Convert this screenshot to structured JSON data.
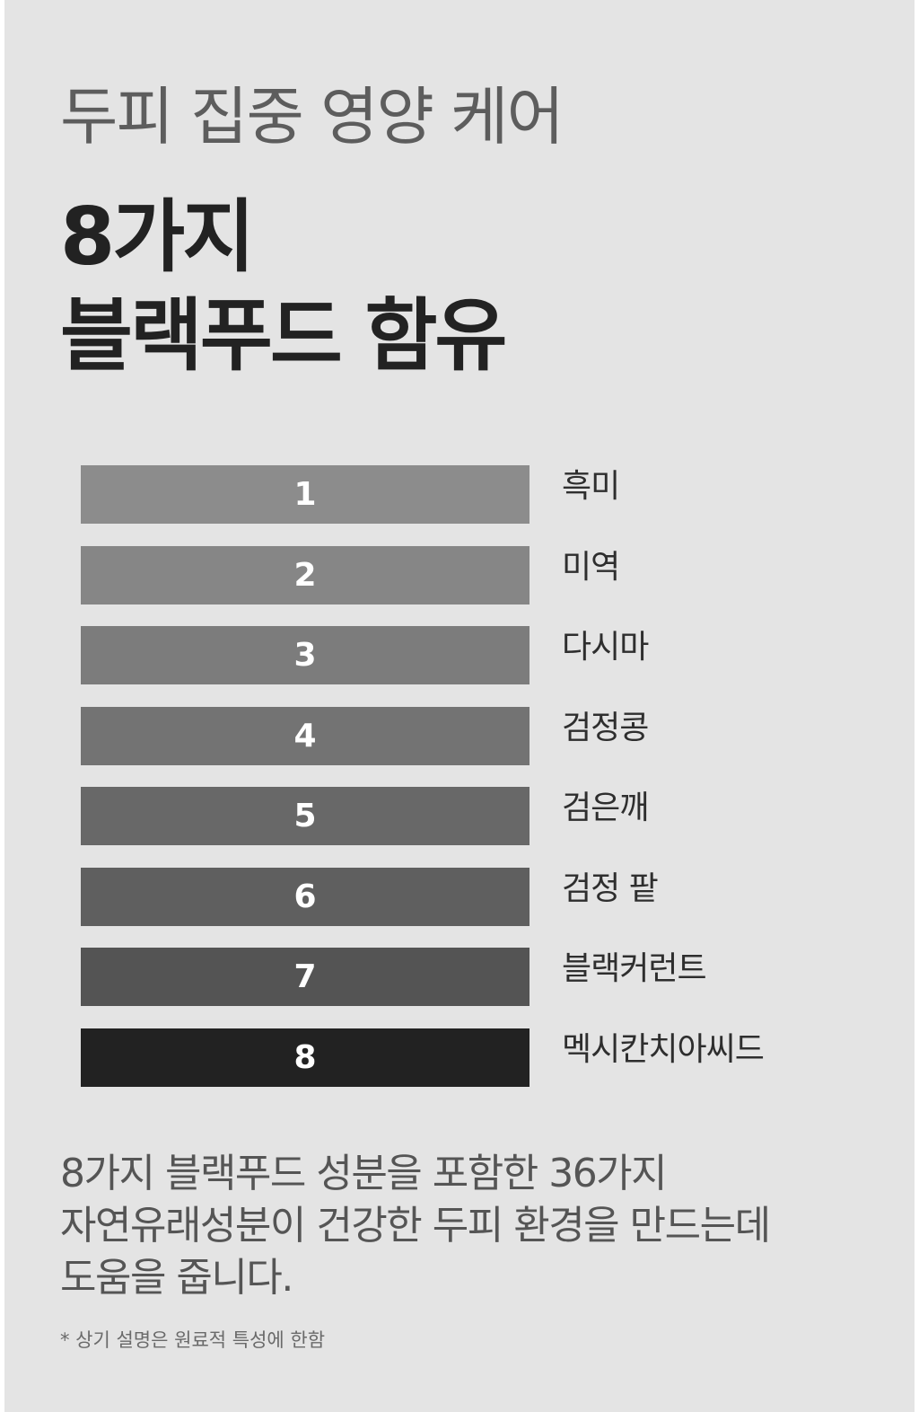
{
  "header": {
    "subtitle": "두피 집중 영양 케어",
    "headline_line1": "8가지",
    "headline_line2": "블랙푸드 함유"
  },
  "ingredients": [
    {
      "number": "1",
      "name": "흑미",
      "color": "#8c8c8c"
    },
    {
      "number": "2",
      "name": "미역",
      "color": "#868686"
    },
    {
      "number": "3",
      "name": "다시마",
      "color": "#7c7c7c"
    },
    {
      "number": "4",
      "name": "검정콩",
      "color": "#737373"
    },
    {
      "number": "5",
      "name": "검은깨",
      "color": "#686868"
    },
    {
      "number": "6",
      "name": "검정 팥",
      "color": "#5f5f5f"
    },
    {
      "number": "7",
      "name": "블랙커런트",
      "color": "#545454"
    },
    {
      "number": "8",
      "name": "멕시칸치아씨드",
      "color": "#222222"
    }
  ],
  "description": {
    "line1": "8가지 블랙푸드 성분을 포함한 36가지",
    "line2": "자연유래성분이 건강한 두피 환경을 만드는데",
    "line3": "도움을 줍니다."
  },
  "footnote": "* 상기 설명은 원료적 특성에 한함"
}
